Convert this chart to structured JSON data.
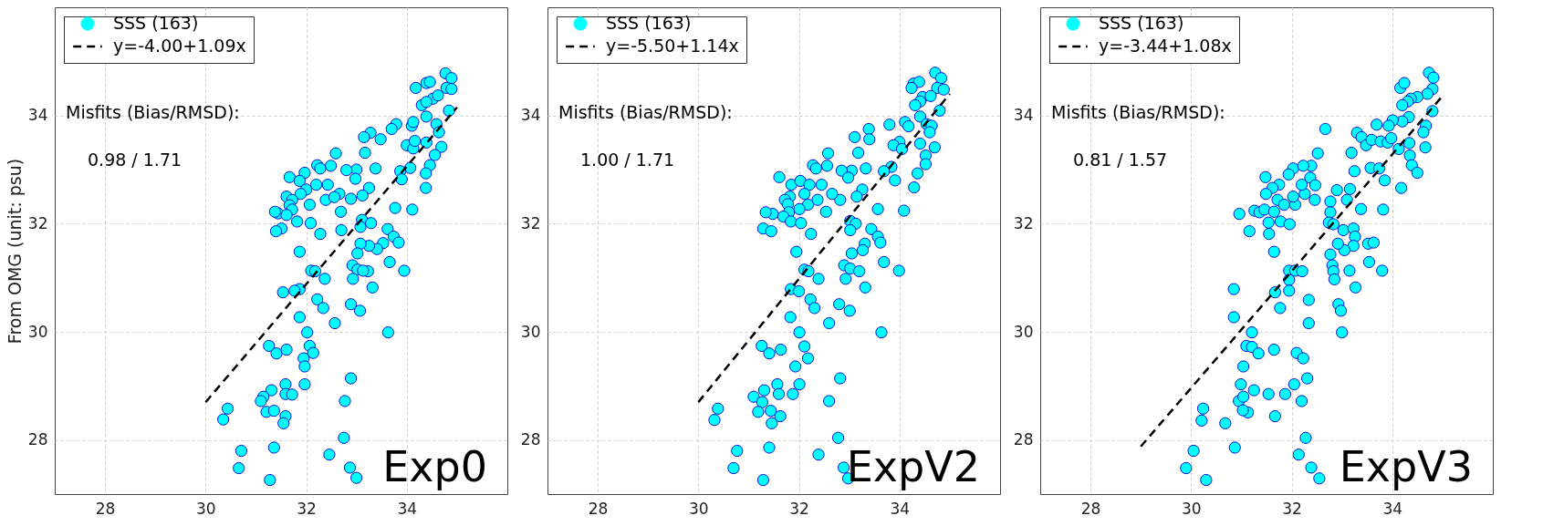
{
  "chart_data": [
    {
      "type": "scatter",
      "ylabel": "From OMG (unit: psu)",
      "xlim": [
        27,
        36
      ],
      "ylim": [
        27,
        36
      ],
      "xticks": [
        28,
        30,
        32,
        34
      ],
      "yticks": [
        28,
        30,
        32,
        34
      ],
      "grid": true,
      "legend": "top left",
      "annotations": [
        "Misfits (Bias/RMSD):",
        "0.98 / 1.71",
        "Exp0"
      ],
      "series": [
        {
          "name": "SSS (163)",
          "type": "scatter",
          "marker": "circle",
          "color": "#00ffff",
          "x": [
            34.77,
            34.89,
            34.18,
            34.39,
            34.46,
            34.79,
            34.89,
            34.52,
            34.3,
            34.39,
            34.62,
            34.84,
            34.39,
            34.59,
            34.64,
            34.69,
            34.1,
            34.13,
            33.79,
            33.7,
            34.0,
            34.13,
            34.16,
            34.39,
            34.56,
            34.46,
            34.38,
            34.38,
            34.07,
            33.87,
            33.9,
            33.77,
            34.11,
            33.28,
            33.15,
            33.48,
            33.17,
            32.59,
            33.38,
            33.0,
            32.8,
            32.98,
            33.25,
            33.12,
            32.89,
            32.66,
            32.49,
            32.43,
            32.22,
            32.28,
            31.97,
            31.67,
            31.87,
            32.2,
            32.0,
            31.89,
            31.61,
            31.72,
            32.39,
            32.56,
            32.07,
            31.67,
            31.72,
            31.44,
            31.38,
            31.61,
            31.82,
            32.09,
            32.69,
            31.51,
            31.4,
            32.28,
            32.7,
            33.11,
            33.08,
            33.29,
            33.62,
            33.74,
            33.84,
            33.53,
            33.41,
            33.25,
            33.08,
            33.02,
            31.87,
            33.66,
            33.95,
            32.92,
            33.02,
            33.23,
            33.13,
            32.93,
            32.1,
            32.18,
            32.37,
            33.32,
            31.87,
            31.77,
            31.54,
            32.22,
            32.34,
            32.89,
            33.07,
            31.87,
            32.57,
            32.02,
            33.63,
            31.26,
            31.41,
            31.61,
            32.07,
            32.14,
            31.95,
            31.97,
            31.97,
            32.89,
            31.31,
            31.59,
            31.59,
            31.72,
            31.15,
            31.1,
            32.77,
            30.44,
            30.35,
            31.21,
            31.36,
            31.59,
            31.55,
            32.75,
            30.71,
            31.36,
            32.46,
            30.66,
            32.87,
            33.0,
            31.28
          ],
          "values": [
            34.78,
            34.69,
            34.51,
            34.6,
            34.62,
            34.51,
            34.49,
            34.31,
            34.19,
            34.25,
            34.37,
            34.09,
            33.98,
            33.84,
            33.69,
            33.42,
            33.81,
            33.88,
            33.84,
            33.75,
            33.45,
            33.39,
            33.53,
            33.5,
            33.27,
            33.08,
            32.93,
            32.66,
            33.03,
            32.97,
            32.82,
            32.29,
            32.26,
            33.68,
            33.6,
            33.56,
            33.31,
            33.3,
            33.02,
            33.0,
            32.99,
            32.83,
            32.66,
            32.52,
            32.46,
            32.55,
            33.07,
            32.72,
            33.08,
            33.02,
            32.94,
            32.86,
            32.79,
            32.72,
            32.63,
            32.55,
            32.5,
            32.44,
            32.44,
            32.49,
            32.35,
            32.34,
            32.26,
            32.19,
            32.22,
            32.16,
            32.04,
            32.01,
            32.22,
            31.91,
            31.86,
            31.81,
            31.88,
            32.07,
            31.94,
            32.01,
            31.9,
            31.76,
            31.65,
            31.64,
            31.53,
            31.59,
            31.63,
            31.45,
            31.48,
            31.29,
            31.13,
            31.23,
            31.15,
            31.12,
            31.13,
            30.98,
            31.13,
            31.12,
            30.98,
            30.82,
            30.79,
            30.76,
            30.73,
            30.6,
            30.44,
            30.51,
            30.39,
            30.27,
            30.16,
            29.99,
            29.99,
            29.74,
            29.6,
            29.67,
            29.74,
            29.61,
            29.51,
            29.36,
            29.03,
            29.14,
            28.92,
            29.03,
            28.85,
            28.84,
            28.8,
            28.72,
            28.72,
            28.58,
            28.38,
            28.52,
            28.54,
            28.44,
            28.31,
            28.04,
            27.8,
            27.86,
            27.73,
            27.48,
            27.49,
            27.3,
            27.26
          ]
        },
        {
          "name": "y=-4.00+1.09x",
          "type": "line",
          "color": "#000000",
          "line_style": "dashed",
          "x": [
            30,
            35
          ],
          "values": [
            28.7,
            34.15
          ]
        }
      ]
    },
    {
      "type": "scatter",
      "xlim": [
        27,
        36
      ],
      "ylim": [
        27,
        36
      ],
      "xticks": [
        28,
        30,
        32,
        34
      ],
      "yticks": [
        28,
        30,
        32,
        34
      ],
      "grid": true,
      "legend": "top left",
      "annotations": [
        "Misfits (Bias/RMSD):",
        "1.00 / 1.71",
        "ExpV2"
      ],
      "series": [
        {
          "name": "SSS (163)",
          "type": "scatter",
          "marker": "circle",
          "color": "#00ffff",
          "x": [
            34.71,
            34.83,
            34.28,
            34.39,
            34.24,
            34.75,
            34.88,
            34.46,
            34.62,
            34.41,
            34.31,
            34.8,
            34.41,
            34.54,
            34.64,
            34.6,
            34.7,
            34.11,
            34.18,
            33.8,
            33.39,
            33.4,
            33.11,
            34.0,
            33.88,
            34.05,
            34.41,
            34.52,
            34.52,
            34.36,
            34.29,
            33.84,
            33.69,
            33.91,
            33.57,
            34.09,
            33.18,
            32.58,
            33.33,
            33.05,
            32.85,
            32.98,
            33.26,
            33.15,
            32.82,
            32.66,
            32.56,
            32.45,
            32.28,
            32.34,
            31.61,
            31.85,
            32.03,
            32.21,
            32.11,
            31.82,
            31.72,
            32.37,
            32.18,
            31.78,
            32.01,
            31.8,
            32.54,
            31.48,
            31.34,
            31.69,
            31.84,
            32.04,
            31.29,
            31.45,
            32.24,
            33.02,
            33.13,
            33.02,
            33.44,
            33.57,
            33.62,
            33.31,
            33.27,
            33.05,
            31.95,
            33.69,
            33.99,
            32.9,
            33.02,
            33.2,
            32.93,
            32.11,
            32.19,
            32.39,
            33.32,
            31.84,
            32.0,
            32.23,
            32.31,
            32.8,
            33.01,
            31.83,
            32.6,
            32.01,
            33.64,
            31.26,
            31.41,
            31.64,
            32.11,
            32.18,
            31.93,
            32.01,
            32.82,
            31.31,
            31.57,
            31.6,
            31.88,
            31.1,
            31.27,
            32.6,
            30.39,
            30.32,
            31.19,
            31.44,
            31.63,
            31.46,
            32.78,
            30.77,
            31.41,
            32.39,
            30.7,
            32.89,
            32.98,
            31.29
          ],
          "values": [
            34.79,
            34.69,
            34.59,
            34.62,
            34.51,
            34.51,
            34.48,
            34.34,
            34.36,
            34.26,
            34.19,
            34.09,
            33.98,
            33.84,
            33.81,
            33.69,
            33.41,
            33.88,
            33.8,
            33.83,
            33.75,
            33.56,
            33.6,
            33.51,
            33.45,
            33.38,
            33.48,
            33.26,
            33.1,
            32.93,
            32.67,
            33.05,
            32.97,
            32.8,
            32.27,
            32.24,
            33.31,
            33.3,
            33.02,
            32.98,
            32.98,
            32.85,
            32.63,
            32.5,
            32.44,
            32.55,
            33.07,
            32.72,
            33.08,
            33.02,
            32.86,
            32.72,
            32.79,
            32.72,
            32.55,
            32.5,
            32.44,
            32.44,
            32.35,
            32.36,
            32.27,
            32.21,
            32.22,
            32.18,
            32.21,
            32.13,
            32.04,
            32.01,
            31.91,
            31.86,
            31.81,
            32.05,
            32.0,
            31.88,
            31.9,
            31.76,
            31.65,
            31.63,
            31.51,
            31.45,
            31.48,
            31.29,
            31.13,
            31.23,
            31.17,
            31.12,
            30.98,
            31.15,
            31.12,
            30.98,
            30.82,
            30.79,
            30.75,
            30.6,
            30.44,
            30.51,
            30.39,
            30.27,
            30.16,
            29.99,
            29.99,
            29.74,
            29.6,
            29.67,
            29.73,
            29.51,
            29.36,
            29.03,
            29.14,
            28.92,
            29.03,
            28.85,
            28.85,
            28.8,
            28.7,
            28.72,
            28.58,
            28.37,
            28.52,
            28.54,
            28.44,
            28.31,
            28.04,
            27.8,
            27.86,
            27.73,
            27.48,
            27.49,
            27.29,
            27.26
          ]
        },
        {
          "name": "y=-5.50+1.14x",
          "type": "line",
          "color": "#000000",
          "line_style": "dashed",
          "x": [
            30,
            35
          ],
          "values": [
            28.7,
            34.4
          ]
        }
      ]
    },
    {
      "type": "scatter",
      "xlim": [
        27,
        36
      ],
      "ylim": [
        27,
        36
      ],
      "xticks": [
        28,
        30,
        32,
        34
      ],
      "yticks": [
        28,
        30,
        32,
        34
      ],
      "grid": true,
      "legend": "top left",
      "annotations": [
        "Misfits (Bias/RMSD):",
        "0.81 / 1.57",
        "ExpV3"
      ],
      "series": [
        {
          "name": "SSS (163)",
          "type": "scatter",
          "marker": "circle",
          "color": "#00ffff",
          "x": [
            34.73,
            34.82,
            34.16,
            34.24,
            34.8,
            34.7,
            34.5,
            34.37,
            34.31,
            34.2,
            34.8,
            34.33,
            34.2,
            34.01,
            33.93,
            33.69,
            34.67,
            34.62,
            34.66,
            32.67,
            33.3,
            33.39,
            33.48,
            33.59,
            33.77,
            33.91,
            33.98,
            34.13,
            34.34,
            34.35,
            34.39,
            34.5,
            34.18,
            33.19,
            32.52,
            33.25,
            33.57,
            33.74,
            33.85,
            33.82,
            33.38,
            33.16,
            32.9,
            33.1,
            32.77,
            32.77,
            32.74,
            32.83,
            33.03,
            33.23,
            33.26,
            33.23,
            33.52,
            33.63,
            33.05,
            32.92,
            32.77,
            33.54,
            33.8,
            32.81,
            32.83,
            32.85,
            33.15,
            33.27,
            32.93,
            32.98,
            33.0,
            32.39,
            32.37,
            32.47,
            32.46,
            32.26,
            32.2,
            32.03,
            32.23,
            31.94,
            31.75,
            31.62,
            31.48,
            31.49,
            31.72,
            31.85,
            32.07,
            32.03,
            31.26,
            31.36,
            31.46,
            31.65,
            31.54,
            31.78,
            31.96,
            30.96,
            31.16,
            31.55,
            31.65,
            31.95,
            32.07,
            32.21,
            31.95,
            31.95,
            31.67,
            30.85,
            31.77,
            32.34,
            30.85,
            32.34,
            31.21,
            31.1,
            31.21,
            31.34,
            31.65,
            32.1,
            32.23,
            31.04,
            32.31,
            30.99,
            31.25,
            32.05,
            31.54,
            31.87,
            30.95,
            31.04,
            32.2,
            30.24,
            30.21,
            31.13,
            31.03,
            31.67,
            30.68,
            32.28,
            30.05,
            30.87,
            32.14,
            29.9,
            32.39,
            32.55,
            30.3
          ],
          "values": [
            34.79,
            34.7,
            34.51,
            34.6,
            34.49,
            34.4,
            34.34,
            34.31,
            34.26,
            34.19,
            34.08,
            33.97,
            33.89,
            33.91,
            33.81,
            33.83,
            33.81,
            33.69,
            33.41,
            33.75,
            33.68,
            33.6,
            33.45,
            33.55,
            33.52,
            33.5,
            33.58,
            33.38,
            33.49,
            33.26,
            33.08,
            32.94,
            32.66,
            33.31,
            33.3,
            32.97,
            33.03,
            33.02,
            32.8,
            32.26,
            32.27,
            32.64,
            32.62,
            32.44,
            32.41,
            32.21,
            32.02,
            31.99,
            31.88,
            31.91,
            31.76,
            31.59,
            31.63,
            31.65,
            31.51,
            31.63,
            31.43,
            31.29,
            31.13,
            31.23,
            31.12,
            30.97,
            31.13,
            30.82,
            30.51,
            30.39,
            29.99,
            33.07,
            32.85,
            32.71,
            32.44,
            32.55,
            32.72,
            33.02,
            33.07,
            32.91,
            32.72,
            32.66,
            32.86,
            32.55,
            32.44,
            32.35,
            32.35,
            32.5,
            32.24,
            32.21,
            32.26,
            32.22,
            32.02,
            32.04,
            31.99,
            32.18,
            31.86,
            31.81,
            31.48,
            31.13,
            31.13,
            31.12,
            30.96,
            30.76,
            30.73,
            30.79,
            30.44,
            30.59,
            30.27,
            30.16,
            29.99,
            29.74,
            29.72,
            29.6,
            29.67,
            29.61,
            29.51,
            29.36,
            29.14,
            29.03,
            28.92,
            29.03,
            28.85,
            28.85,
            28.72,
            28.8,
            28.72,
            28.58,
            28.36,
            28.51,
            28.55,
            28.44,
            28.31,
            28.04,
            27.8,
            27.86,
            27.73,
            27.48,
            27.49,
            27.29,
            27.26
          ]
        },
        {
          "name": "y=-3.44+1.08x",
          "type": "line",
          "color": "#000000",
          "line_style": "dashed",
          "x": [
            29,
            35
          ],
          "values": [
            27.88,
            34.36
          ]
        }
      ]
    }
  ]
}
